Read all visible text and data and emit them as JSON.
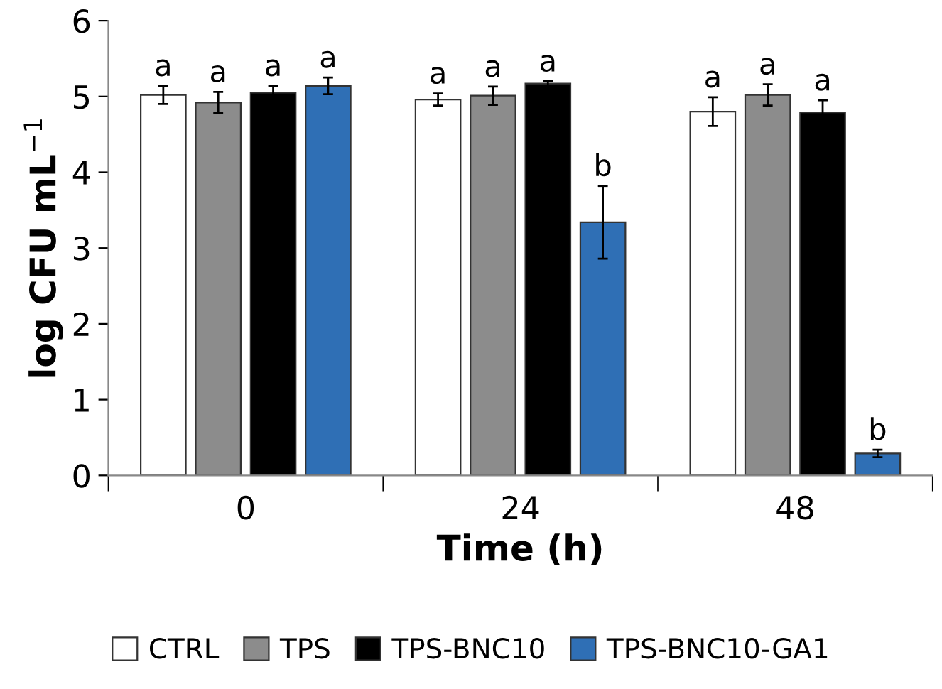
{
  "chart_data": {
    "type": "bar",
    "xlabel": "Time (h)",
    "ylabel": "log CFU mL$^{−1}$",
    "categories": [
      "0",
      "24",
      "48"
    ],
    "series": [
      {
        "name": "CTRL",
        "color": "#ffffff",
        "values": [
          5.02,
          4.96,
          4.8
        ],
        "errors": [
          0.12,
          0.08,
          0.19
        ],
        "value_labels": [
          "a",
          "a",
          "a"
        ]
      },
      {
        "name": "TPS",
        "color": "#8c8c8c",
        "values": [
          4.92,
          5.01,
          5.02
        ],
        "errors": [
          0.14,
          0.12,
          0.14
        ],
        "value_labels": [
          "a",
          "a",
          "a"
        ]
      },
      {
        "name": "TPS-BNC10",
        "color": "#000000",
        "values": [
          5.05,
          5.17,
          4.79
        ],
        "errors": [
          0.09,
          0.03,
          0.16
        ],
        "value_labels": [
          "a",
          "a",
          "a"
        ]
      },
      {
        "name": "TPS-BNC10-GA1",
        "color": "#2f6fb5",
        "values": [
          5.14,
          3.34,
          0.29
        ],
        "errors": [
          0.11,
          0.48,
          0.05
        ],
        "value_labels": [
          "a",
          "b",
          "b"
        ]
      }
    ],
    "ylim": [
      0,
      6
    ],
    "yticks": [
      0,
      1,
      2,
      3,
      4,
      5,
      6
    ],
    "grid": false,
    "legend": "bottom"
  }
}
